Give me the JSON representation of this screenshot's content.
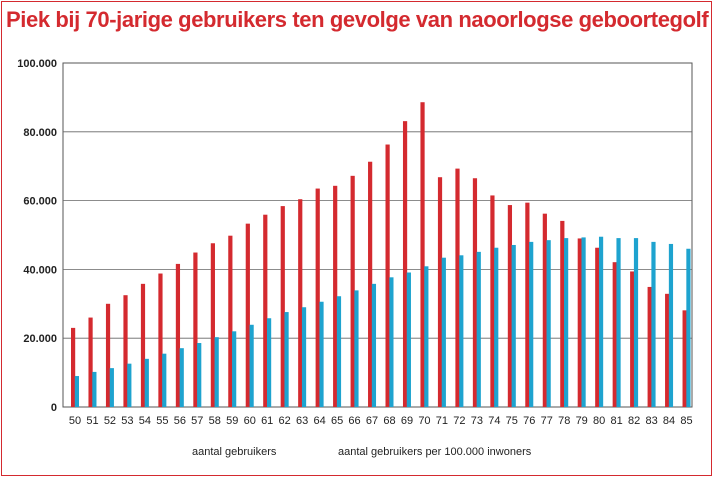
{
  "title": "Piek bij 70-jarige gebruikers ten gevolge van naoorlogse geboortegolf",
  "chart_data": {
    "type": "bar",
    "title": "Piek bij 70-jarige gebruikers ten gevolge van naoorlogse geboortegolf",
    "xlabel": "",
    "ylabel": "",
    "ylim": [
      0,
      100000
    ],
    "yticks": [
      0,
      20000,
      40000,
      60000,
      80000,
      100000
    ],
    "ytick_labels": [
      "0",
      "20.000",
      "40.000",
      "60.000",
      "80.000",
      "100.000"
    ],
    "grid": true,
    "legend_position": "bottom",
    "categories": [
      "50",
      "51",
      "52",
      "53",
      "54",
      "55",
      "56",
      "57",
      "58",
      "59",
      "60",
      "61",
      "62",
      "63",
      "64",
      "65",
      "66",
      "67",
      "68",
      "69",
      "70",
      "71",
      "72",
      "73",
      "74",
      "75",
      "76",
      "77",
      "78",
      "79",
      "80",
      "81",
      "82",
      "83",
      "84",
      "85"
    ],
    "series": [
      {
        "name": "aantal gebruikers",
        "color": "#d42a2f",
        "values": [
          23000,
          26000,
          30000,
          32500,
          35800,
          38800,
          41600,
          44900,
          47600,
          49800,
          53300,
          55900,
          58400,
          60400,
          63500,
          64300,
          67200,
          71300,
          76300,
          83100,
          88600,
          66800,
          69300,
          66500,
          61500,
          58700,
          59400,
          56200,
          54100,
          49000,
          46300,
          42100,
          39400,
          34900,
          32900,
          28100
        ]
      },
      {
        "name": "aantal gebruikers per 100.000 inwoners",
        "color": "#1ea3cf",
        "values": [
          9000,
          10200,
          11300,
          12600,
          14000,
          15500,
          17100,
          18600,
          20300,
          22000,
          23900,
          25800,
          27600,
          29000,
          30600,
          32200,
          33900,
          35800,
          37700,
          39100,
          40900,
          43400,
          44100,
          45100,
          46300,
          47100,
          48000,
          48500,
          49100,
          49300,
          49500,
          49100,
          49100,
          48000,
          47400,
          46000
        ]
      }
    ]
  }
}
